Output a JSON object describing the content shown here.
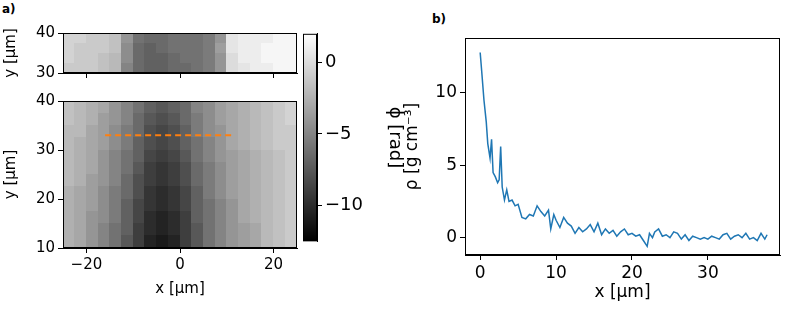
{
  "chart_data": [
    {
      "type": "heatmap",
      "title": "a)",
      "color": "gray",
      "x": [
        -23.75,
        -21.25,
        -18.75,
        -16.25,
        -13.75,
        -11.25,
        -8.75,
        -6.25,
        -3.75,
        -1.25,
        1.25,
        3.75,
        6.25,
        8.75,
        11.25,
        13.75,
        16.25,
        18.75,
        21.25,
        23.75
      ],
      "y": [
        38.75,
        36.25,
        33.75,
        31.25
      ],
      "z": [
        [
          -0.5,
          -0.5,
          -1,
          -1,
          -1.5,
          -4,
          -6,
          -6.5,
          -6.5,
          -6,
          -6,
          -6,
          -5.5,
          -4,
          0.5,
          1,
          1,
          1,
          1.5,
          1.5
        ],
        [
          -0.5,
          -1,
          -1,
          -1,
          -1.5,
          -4.5,
          -6.5,
          -7,
          -6.5,
          -6,
          -6,
          -6,
          -5.5,
          -3.5,
          0.5,
          1,
          1,
          1.5,
          1.5,
          1.5
        ],
        [
          -0.5,
          -1,
          -1,
          -1.5,
          -2,
          -4.5,
          -6.5,
          -7,
          -7,
          -6.5,
          -6,
          -6,
          -5.5,
          -4,
          0,
          1,
          1,
          1.5,
          1.5,
          1.5
        ],
        [
          -1,
          -1,
          -1,
          -1.5,
          -2,
          -5,
          -6.5,
          -7,
          -7,
          -6.5,
          -6.5,
          -6,
          -5.5,
          -4,
          0,
          0.5,
          1,
          1,
          1.5,
          1.5
        ]
      ],
      "xlim": [
        -25,
        25
      ],
      "xticks": [
        -20,
        0,
        20
      ],
      "ylim": [
        30,
        40
      ],
      "yticks": [
        30,
        40
      ],
      "ylabel": "y [µm]",
      "tick_labels": "y"
    },
    {
      "type": "heatmap",
      "color": "gray",
      "x": [
        -23.75,
        -21.25,
        -18.75,
        -16.25,
        -13.75,
        -11.25,
        -8.75,
        -6.25,
        -3.75,
        -1.25,
        1.25,
        3.75,
        6.25,
        8.75,
        11.25,
        13.75,
        16.25,
        18.75,
        21.25,
        23.75
      ],
      "y": [
        38.75,
        36.25,
        33.75,
        31.25,
        28.75,
        26.25,
        23.75,
        21.25,
        18.75,
        16.25,
        13.75,
        11.25
      ],
      "z": [
        [
          -1.5,
          -2,
          -2.5,
          -3,
          -4,
          -5,
          -6,
          -7,
          -7.5,
          -7,
          -6.5,
          -5,
          -4.5,
          -3.5,
          -3,
          -2.5,
          -2,
          -1.5,
          -1,
          -0.5
        ],
        [
          -1.5,
          -2,
          -2.5,
          -3.5,
          -4,
          -5,
          -6.5,
          -7.5,
          -8,
          -7.5,
          -6.5,
          -5.5,
          -4.5,
          -3.5,
          -3,
          -2.5,
          -2,
          -1.5,
          -1,
          -0.5
        ],
        [
          -2,
          -2,
          -3,
          -3.5,
          -4.5,
          -5.5,
          -6.5,
          -8,
          -8.5,
          -8,
          -7,
          -5.5,
          -4.5,
          -4,
          -3,
          -2.5,
          -2,
          -1.5,
          -1,
          -1
        ],
        [
          -2,
          -2.5,
          -3,
          -3.5,
          -4.5,
          -5.5,
          -7,
          -8,
          -8.5,
          -8,
          -7,
          -6,
          -5,
          -4,
          -3,
          -2.5,
          -2,
          -1.5,
          -1,
          -1
        ],
        [
          -2,
          -2.5,
          -3,
          -4,
          -5,
          -6,
          -7,
          -8.5,
          -9,
          -8.5,
          -7.5,
          -6,
          -5,
          -4,
          -3.5,
          -3,
          -2.5,
          -2,
          -1.5,
          -1
        ],
        [
          -2,
          -2.5,
          -3,
          -4,
          -5,
          -6,
          -7.5,
          -9,
          -9.5,
          -9,
          -8,
          -6.5,
          -5.5,
          -4.5,
          -3.5,
          -3,
          -2.5,
          -2,
          -1.5,
          -1
        ],
        [
          -2,
          -2.5,
          -3.5,
          -4,
          -5,
          -6.5,
          -8,
          -9,
          -9.5,
          -9,
          -8,
          -6.5,
          -5.5,
          -4.5,
          -3.5,
          -3,
          -2.5,
          -2,
          -1.5,
          -1
        ],
        [
          -2.5,
          -3,
          -3.5,
          -4.5,
          -5.5,
          -6.5,
          -8,
          -9.5,
          -10,
          -9.5,
          -8.5,
          -7,
          -5.5,
          -4.5,
          -3.5,
          -3,
          -2.5,
          -2,
          -1.5,
          -1
        ],
        [
          -2.5,
          -3,
          -3.5,
          -4.5,
          -5.5,
          -7,
          -8.5,
          -9.5,
          -10,
          -9.5,
          -8.5,
          -7,
          -6,
          -5,
          -4,
          -3,
          -2.5,
          -2,
          -1.5,
          -1
        ],
        [
          -2.5,
          -3,
          -4,
          -4.5,
          -5.5,
          -7,
          -8.5,
          -10,
          -10.5,
          -10,
          -9,
          -7,
          -6,
          -5,
          -4,
          -3,
          -2.5,
          -2,
          -1.5,
          -1
        ],
        [
          -2.5,
          -3,
          -4,
          -5,
          -6,
          -7,
          -9,
          -10,
          -10.5,
          -10,
          -9,
          -7.5,
          -6,
          -5,
          -4,
          -3.5,
          -3,
          -2,
          -1.5,
          -1
        ],
        [
          -2.5,
          -3,
          -4,
          -5,
          -6,
          -7.5,
          -9,
          -10.5,
          -11,
          -10.5,
          -9,
          -7.5,
          -6,
          -5,
          -4,
          -3.5,
          -3,
          -2,
          -1.5,
          -1
        ]
      ],
      "xlim": [
        -25,
        25
      ],
      "xticks": [
        {
          "value": -20,
          "label": "−20"
        },
        0,
        20
      ],
      "ylim": [
        10,
        40
      ],
      "yticks": [
        10,
        20,
        30,
        40
      ],
      "xlabel": "x [µm]",
      "ylabel": "y [µm]",
      "series": [
        {
          "type": "line",
          "color": "#ff7f0e",
          "line_style": "dashed",
          "x": [
            -16,
            11
          ],
          "values": [
            33,
            33
          ]
        }
      ],
      "colorbar": {
        "label": "ϕ [rad]",
        "range": [
          -12.5,
          2
        ],
        "ticks": [
          0,
          {
            "value": -5,
            "label": "−5"
          },
          {
            "value": -10,
            "label": "−10"
          }
        ]
      }
    },
    {
      "type": "line",
      "title": "b)",
      "color": "#1f77b4",
      "x": [
        0,
        0.2,
        0.5,
        0.8,
        1,
        1.3,
        1.5,
        1.7,
        2,
        2.3,
        2.5,
        2.7,
        2.9,
        3.2,
        3.5,
        3.8,
        4.2,
        4.6,
        5,
        5.5,
        6,
        6.5,
        7,
        7.5,
        8,
        8.5,
        9,
        9.3,
        9.7,
        10,
        10.5,
        11,
        11.5,
        12,
        12.5,
        13,
        13.5,
        14,
        14.5,
        15,
        15.5,
        16,
        16.5,
        17,
        17.5,
        18,
        18.5,
        19,
        19.5,
        20,
        20.5,
        21,
        21.5,
        22,
        22.3,
        22.7,
        23,
        23.5,
        24,
        24.5,
        25,
        25.5,
        26,
        26.5,
        27,
        27.5,
        28,
        28.5,
        29,
        29.5,
        30,
        30.5,
        31,
        31.5,
        32,
        32.5,
        33,
        33.5,
        34,
        34.5,
        35,
        35.5,
        36,
        36.5,
        37,
        37.5,
        37.8
      ],
      "values": [
        12.8,
        11.5,
        9.5,
        8,
        6.5,
        5.5,
        6.8,
        4.5,
        4.2,
        3.8,
        4,
        6.3,
        3.5,
        2.6,
        3.3,
        2.5,
        2.6,
        2.2,
        2.3,
        1.4,
        1.3,
        1.6,
        1.5,
        2.2,
        1.8,
        1.5,
        1.9,
        0.6,
        1.6,
        1.2,
        0.7,
        1.4,
        1.0,
        0.8,
        0.3,
        0.7,
        0.4,
        0.6,
        0.9,
        0.4,
        1.0,
        0.2,
        0.6,
        0.3,
        0.5,
        0.1,
        0.4,
        0.6,
        0.2,
        0.3,
        0.1,
        0.2,
        -0.2,
        -0.6,
        0.3,
        0.0,
        0.4,
        0.6,
        0.1,
        0.2,
        0.0,
        0.4,
        0.3,
        -0.1,
        0.2,
        -0.2,
        0.1,
        0.0,
        -0.1,
        0.0,
        -0.1,
        0.1,
        0.0,
        -0.1,
        0.2,
        0.3,
        -0.1,
        0.1,
        0.2,
        0.0,
        0.3,
        -0.1,
        0.0,
        -0.2,
        0.3,
        -0.1,
        0.2
      ],
      "xlim": [
        -2,
        39.5
      ],
      "xticks": [
        0,
        10,
        20,
        30
      ],
      "ylim": [
        -1.2,
        13.8
      ],
      "yticks": [
        0,
        5,
        10
      ],
      "xlabel": "x [µm]",
      "ylabel": "ρ [g cm⁻³]"
    }
  ]
}
